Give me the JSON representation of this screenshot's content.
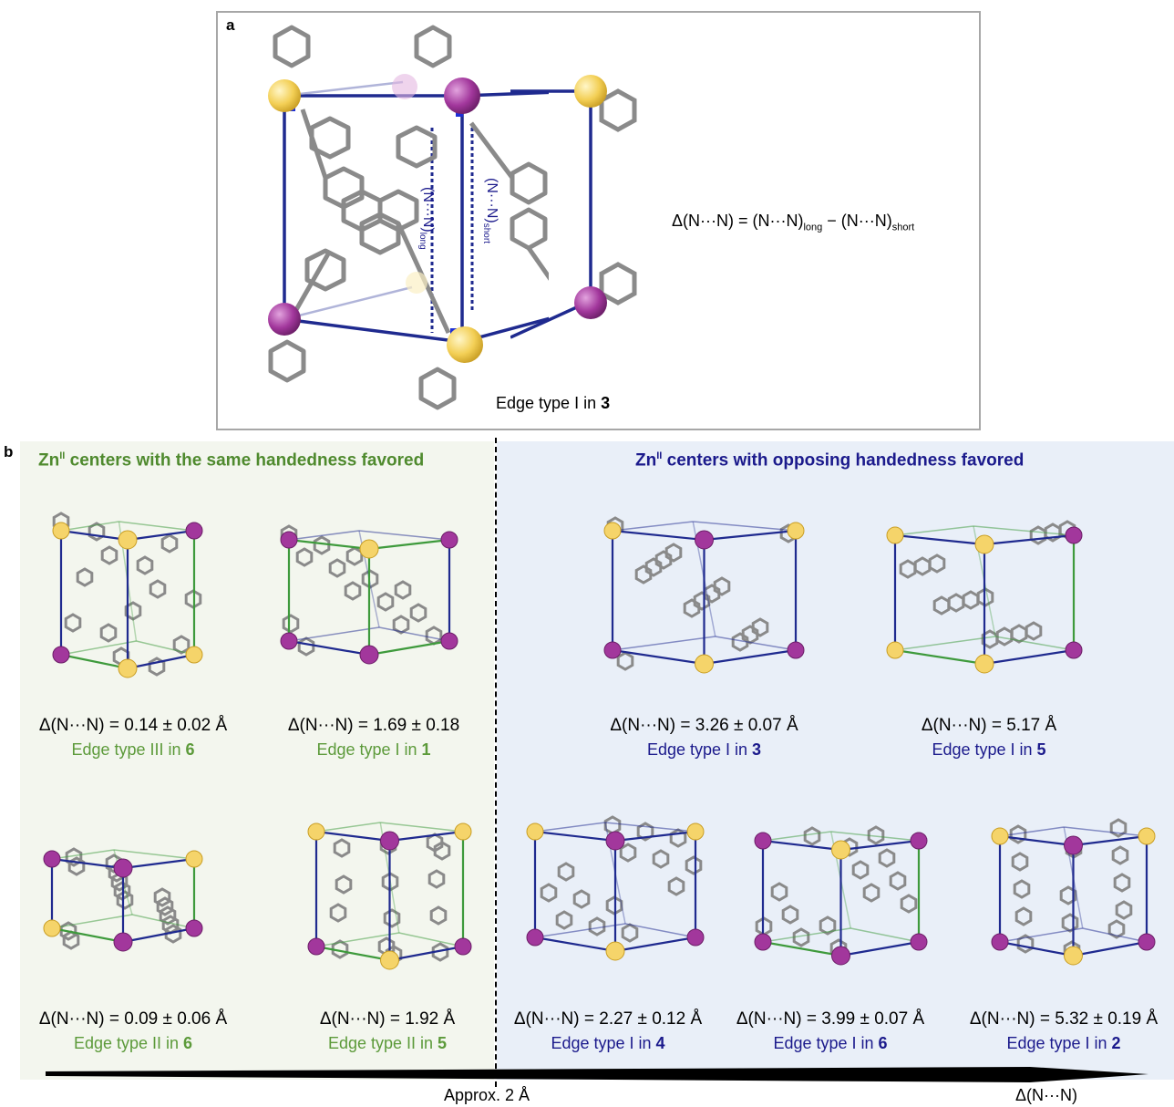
{
  "panel_a": {
    "letter": "a",
    "label_long": "(N···N)",
    "label_long_sub": "long",
    "label_short": "(N···N)",
    "label_short_sub": "short",
    "formula_lhs": "Δ(N···N) = (N···N)",
    "formula_sub1": "long",
    "formula_mid": " − (N···N)",
    "formula_sub2": "short",
    "caption_prefix": "Edge type I in ",
    "caption_bold": "3"
  },
  "panel_b": {
    "letter": "b",
    "heading_same_pre": "Zn",
    "heading_same_sup": "II",
    "heading_same_post": " centers with the same handedness favored",
    "heading_opp_pre": "Zn",
    "heading_opp_sup": "II",
    "heading_opp_post": " centers with opposing handedness favored",
    "items": [
      {
        "delta": "Δ(N···N) = 0.14 ± 0.02 Å",
        "edge": "Edge type III in ",
        "bold": "6"
      },
      {
        "delta": "Δ(N···N) = 1.69 ± 0.18",
        "edge": "Edge type I in ",
        "bold": "1"
      },
      {
        "delta": "Δ(N···N) = 3.26 ± 0.07 Å",
        "edge": "Edge type I in ",
        "bold": "3"
      },
      {
        "delta": "Δ(N···N) = 5.17 Å",
        "edge": "Edge type I in ",
        "bold": "5"
      },
      {
        "delta": "Δ(N···N) = 0.09 ± 0.06 Å",
        "edge": "Edge type II in ",
        "bold": "6"
      },
      {
        "delta": "Δ(N···N) = 1.92 Å",
        "edge": "Edge type II in ",
        "bold": "5"
      },
      {
        "delta": "Δ(N···N) = 2.27 ± 0.12 Å",
        "edge": "Edge type I in ",
        "bold": "4"
      },
      {
        "delta": "Δ(N···N) = 3.99 ± 0.07 Å",
        "edge": "Edge type I in ",
        "bold": "6"
      },
      {
        "delta": "Δ(N···N) = 5.32 ±  0.19 Å",
        "edge": "Edge type I in ",
        "bold": "2"
      }
    ],
    "arrow_label": "Approx. 2 Å",
    "arrow_axis_label": "Δ(N···N)"
  },
  "colors": {
    "zn_yellow": "#f5d46a",
    "zn_magenta": "#a2379c",
    "cage_blue": "#1f2a8f",
    "cage_green": "#3e9a3c",
    "ligand_grey": "#8a8a8a",
    "nitrogen_blue": "#1d2fd6"
  }
}
